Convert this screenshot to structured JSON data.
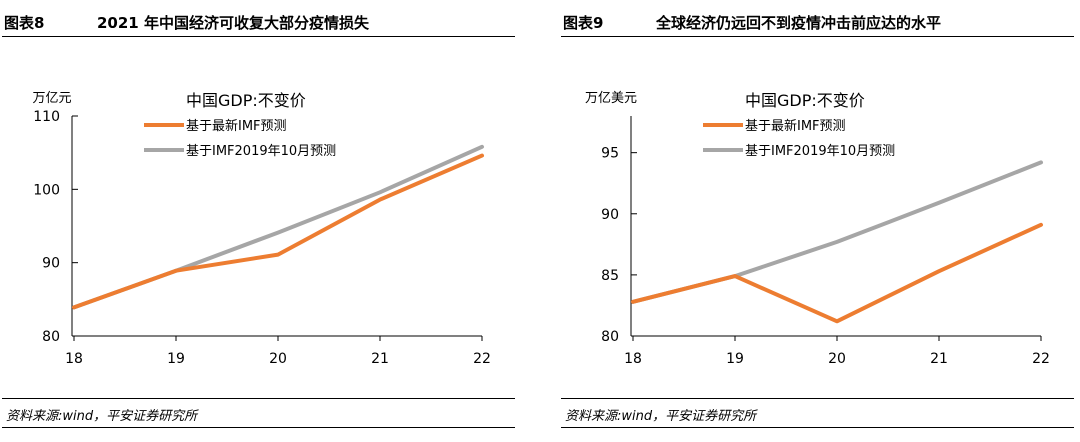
{
  "charts": [
    {
      "figure_no": "图表8",
      "title": "2021 年中国经济可收复大部分疫情损失",
      "source": "资料来源:wind，平安证券研究所",
      "unit": "万亿元",
      "legend_title": "中国GDP:不变价",
      "colors": {
        "orange": "#ed7d31",
        "gray": "#a6a6a6"
      }
    },
    {
      "figure_no": "图表9",
      "title": "全球经济仍远回不到疫情冲击前应达的水平",
      "source": "资料来源:wind，平安证券研究所",
      "unit": "万亿美元",
      "legend_title": "中国GDP:不变价",
      "colors": {
        "orange": "#ed7d31",
        "gray": "#a6a6a6"
      }
    }
  ],
  "chart_data": [
    {
      "type": "line",
      "categories": [
        "18",
        "19",
        "20",
        "21",
        "22"
      ],
      "yticks": [
        80,
        90,
        100,
        110
      ],
      "ylim": [
        80,
        110
      ],
      "grid": false,
      "legend_position": "top-left",
      "series": [
        {
          "name": "基于最新IMF预测",
          "color": "#ed7d31",
          "values": [
            83.9,
            88.9,
            91.1,
            98.6,
            104.6
          ]
        },
        {
          "name": "基于IMF2019年10月预测",
          "color": "#a6a6a6",
          "values": [
            83.9,
            88.9,
            94.1,
            99.6,
            105.8
          ]
        }
      ]
    },
    {
      "type": "line",
      "categories": [
        "18",
        "19",
        "20",
        "21",
        "22"
      ],
      "yticks": [
        80,
        85,
        90,
        95
      ],
      "ylim": [
        80,
        98
      ],
      "grid": false,
      "legend_position": "top-left",
      "series": [
        {
          "name": "基于最新IMF预测",
          "color": "#ed7d31",
          "values": [
            82.8,
            84.9,
            81.2,
            85.3,
            89.1
          ]
        },
        {
          "name": "基于IMF2019年10月预测",
          "color": "#a6a6a6",
          "values": [
            82.8,
            84.9,
            87.7,
            90.9,
            94.2
          ]
        }
      ]
    }
  ]
}
